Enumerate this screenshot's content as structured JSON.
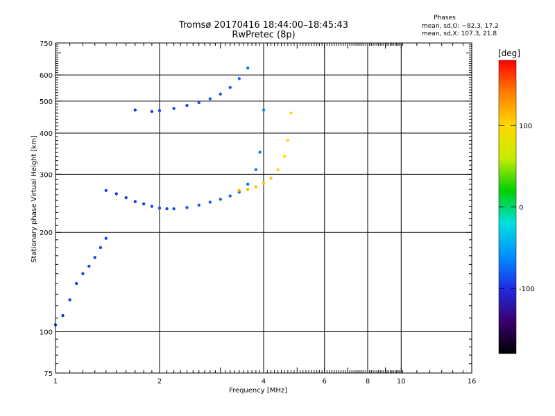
{
  "chart_data": {
    "type": "scatter",
    "title": "Tromsø 20170416 18:44:00–18:45:43",
    "subtitle": "RwPretec (8p)",
    "xlabel": "Frequency [MHz]",
    "ylabel": "Stationary phase Virtual Height [km]",
    "x_scale": "log",
    "y_scale": "log",
    "xlim": [
      1,
      16
    ],
    "ylim": [
      75,
      750
    ],
    "x_ticks": [
      "1",
      "2",
      "4",
      "6",
      "8",
      "10",
      "16"
    ],
    "y_ticks": [
      "750",
      "600",
      "500",
      "400",
      "300",
      "200",
      "100",
      "75"
    ],
    "grid": true,
    "colorbar": {
      "unit": "[deg]",
      "ticks": [
        "100",
        "0",
        "-100"
      ],
      "range": [
        -180,
        180
      ],
      "colors": [
        "#000000",
        "#3a006e",
        "#1f2be6",
        "#0090ff",
        "#00e0e0",
        "#00d000",
        "#c8ec00",
        "#ffd800",
        "#ff8000",
        "#ff0000"
      ]
    },
    "phases": {
      "title": "Phases",
      "o_line": "mean, sd,O: −82.3, 17.2",
      "x_line": "mean, sd,X: 107.3, 21.8"
    },
    "series": [
      {
        "trace": "F-layer O trace",
        "x": [
          1.4,
          1.5,
          1.6,
          1.7,
          1.8,
          1.9,
          2.0,
          2.1,
          2.2,
          2.4,
          2.6,
          2.8,
          3.0,
          3.2,
          3.4,
          3.6,
          3.8,
          3.9,
          4.0
        ],
        "y": [
          268,
          262,
          255,
          248,
          244,
          240,
          237,
          236,
          236,
          238,
          242,
          247,
          252,
          258,
          265,
          280,
          310,
          350,
          470
        ],
        "phase": [
          -95,
          -95,
          -93,
          -92,
          -92,
          -90,
          -90,
          -88,
          -88,
          -85,
          -82,
          -80,
          -78,
          -75,
          -72,
          -70,
          -68,
          -65,
          -60
        ]
      },
      {
        "trace": "F-layer X trace",
        "x": [
          3.4,
          3.6,
          3.8,
          4.0,
          4.2,
          4.4,
          4.6,
          4.7,
          4.8
        ],
        "y": [
          268,
          270,
          275,
          282,
          292,
          310,
          340,
          380,
          460
        ],
        "phase": [
          120,
          115,
          110,
          110,
          108,
          105,
          100,
          98,
          95
        ]
      },
      {
        "trace": "Upper O trace",
        "x": [
          1.7,
          1.9,
          2.0,
          2.2,
          2.4,
          2.6,
          2.8,
          3.0,
          3.2,
          3.4,
          3.6
        ],
        "y": [
          470,
          465,
          468,
          475,
          485,
          495,
          508,
          525,
          550,
          585,
          630
        ],
        "phase": [
          -95,
          -95,
          -92,
          -90,
          -88,
          -85,
          -82,
          -80,
          -78,
          -75,
          -70
        ]
      },
      {
        "trace": "Low-frequency E/F1 trace",
        "x": [
          1.0,
          1.05,
          1.1,
          1.15,
          1.2,
          1.25,
          1.3,
          1.35,
          1.4
        ],
        "y": [
          105,
          112,
          125,
          140,
          150,
          158,
          168,
          180,
          192
        ],
        "phase": [
          -95,
          -95,
          -93,
          -92,
          -92,
          -90,
          -90,
          -88,
          -88
        ]
      }
    ]
  }
}
